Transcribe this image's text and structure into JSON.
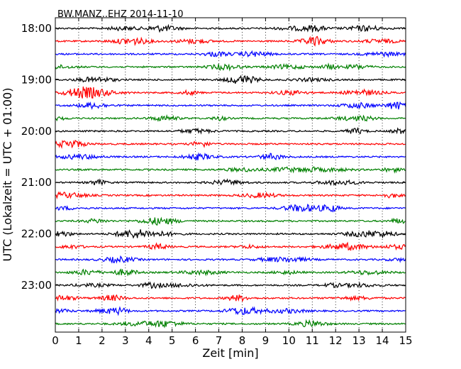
{
  "chart_data": {
    "type": "line",
    "title": "BW.MANZ..EHZ 2014-11-10",
    "xlabel": "Zeit  [min]",
    "ylabel": "UTC (Lokalzeit = UTC + 01:00)",
    "xlim": [
      0,
      15
    ],
    "x_ticks": [
      "0",
      "1",
      "2",
      "3",
      "4",
      "5",
      "6",
      "7",
      "8",
      "9",
      "10",
      "11",
      "12",
      "13",
      "14",
      "15"
    ],
    "y_ticks": [
      "18:00",
      "19:00",
      "20:00",
      "21:00",
      "22:00",
      "23:00"
    ],
    "trace_interval_minutes": 15,
    "grid": "vertical dotted",
    "trace_colors": [
      "#000000",
      "#ff0000",
      "#0000ff",
      "#008000"
    ],
    "trace_count": 24
  }
}
